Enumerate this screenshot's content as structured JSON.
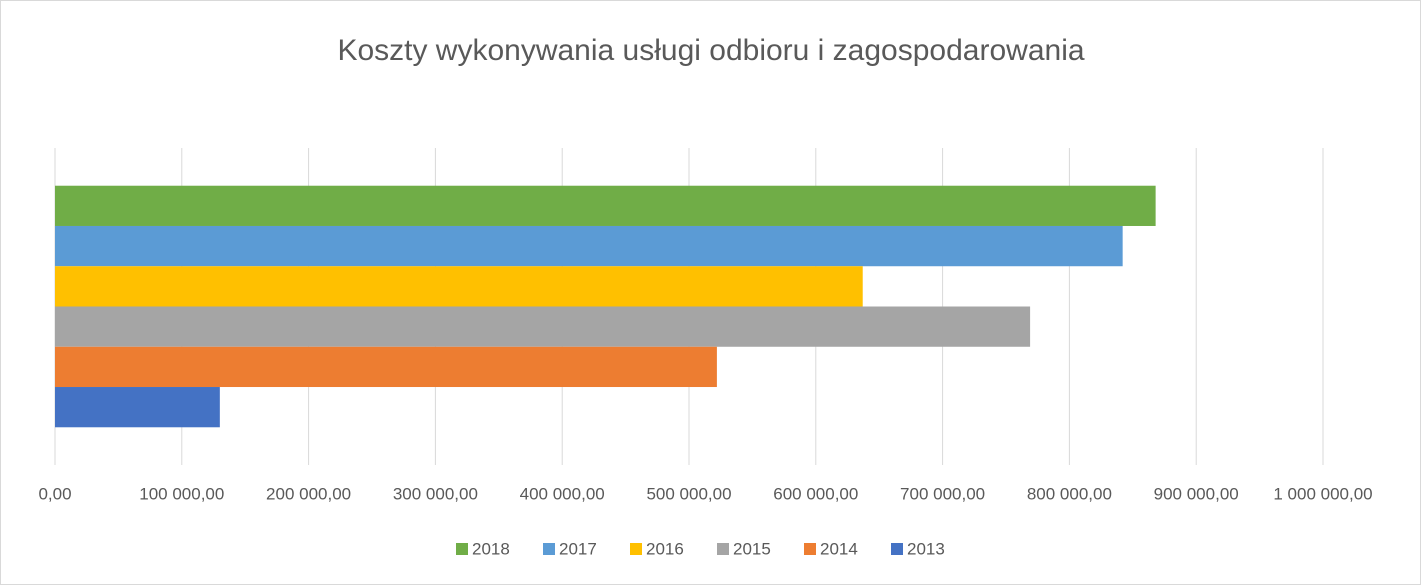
{
  "chart_data": {
    "type": "bar",
    "orientation": "horizontal",
    "title": "Koszty wykonywania usługi odbioru i zagospodarowania",
    "categories": [
      null
    ],
    "series": [
      {
        "name": "2018",
        "color": "#70ad47",
        "values": [
          868000
        ]
      },
      {
        "name": "2017",
        "color": "#5b9bd5",
        "values": [
          842000
        ]
      },
      {
        "name": "2016",
        "color": "#ffc000",
        "values": [
          637000
        ]
      },
      {
        "name": "2015",
        "color": "#a5a5a5",
        "values": [
          769000
        ]
      },
      {
        "name": "2014",
        "color": "#ed7d31",
        "values": [
          522000
        ]
      },
      {
        "name": "2013",
        "color": "#4472c4",
        "values": [
          130000
        ]
      }
    ],
    "xlim": [
      0,
      1000000
    ],
    "xticks": [
      {
        "value": 0,
        "label": "0,00"
      },
      {
        "value": 100000,
        "label": "100 000,00"
      },
      {
        "value": 200000,
        "label": "200 000,00"
      },
      {
        "value": 300000,
        "label": "300 000,00"
      },
      {
        "value": 400000,
        "label": "400 000,00"
      },
      {
        "value": 500000,
        "label": "500 000,00"
      },
      {
        "value": 600000,
        "label": "600 000,00"
      },
      {
        "value": 700000,
        "label": "700 000,00"
      },
      {
        "value": 800000,
        "label": "800 000,00"
      },
      {
        "value": 900000,
        "label": "900 000,00"
      },
      {
        "value": 1000000,
        "label": "1 000 000,00"
      }
    ],
    "grid": true,
    "legend": "bottom"
  }
}
